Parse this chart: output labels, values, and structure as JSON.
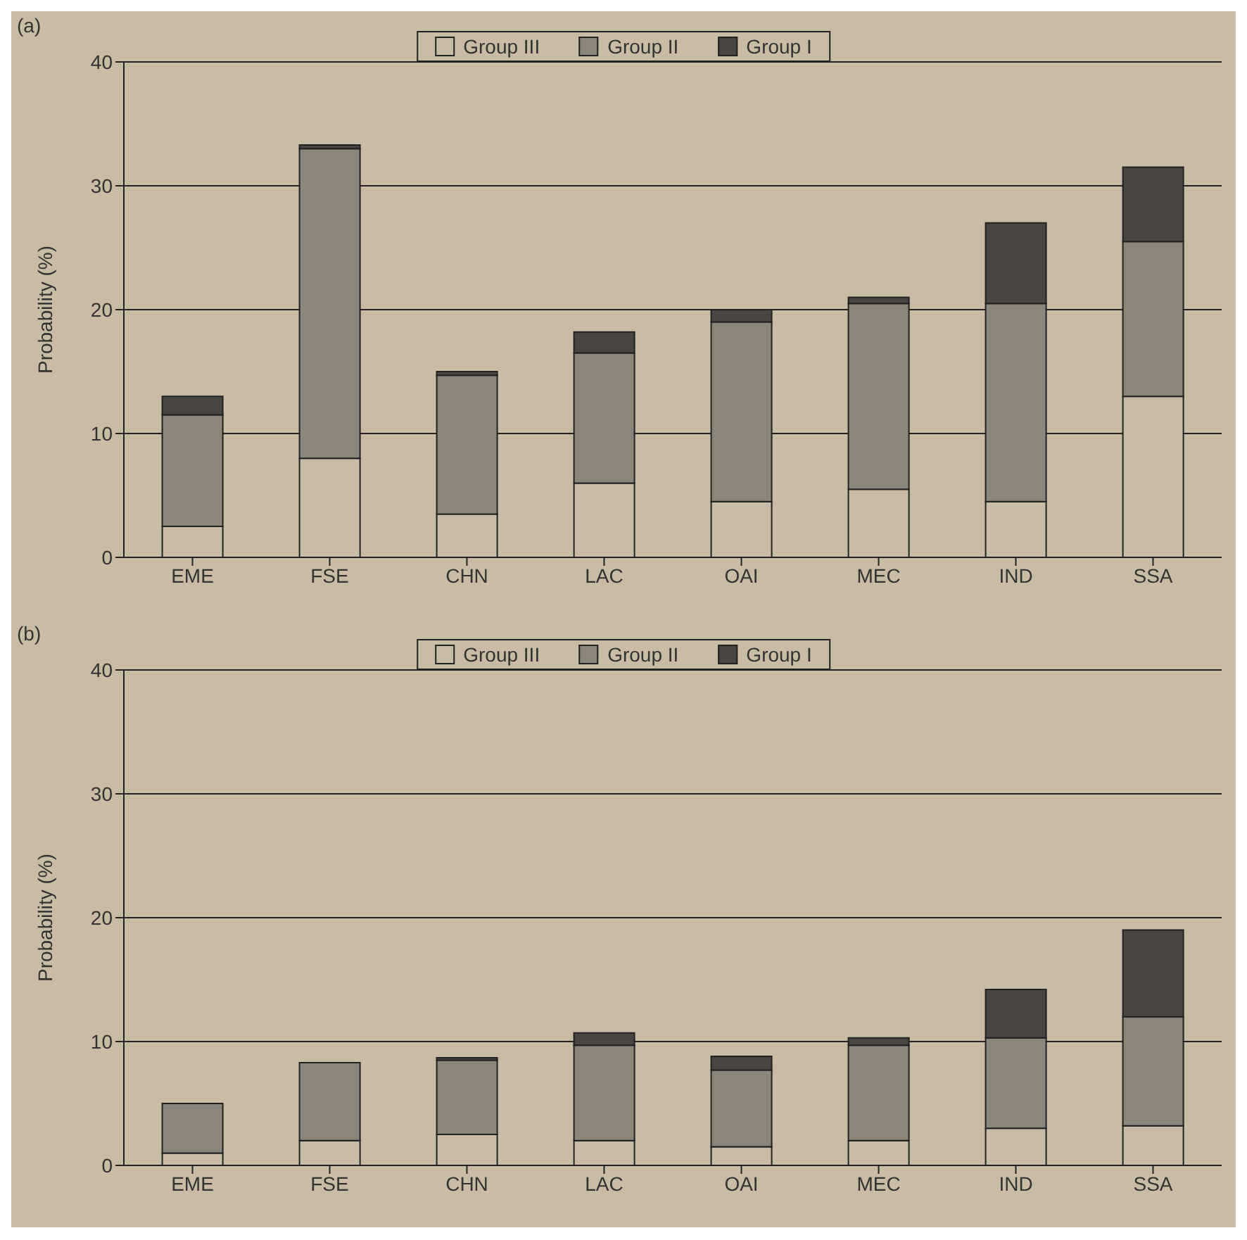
{
  "chart_data": [
    {
      "type": "bar",
      "title": "(a)",
      "ylabel": "Probability (%)",
      "stacked": true,
      "categories": [
        "EME",
        "FSE",
        "CHN",
        "LAC",
        "OAI",
        "MEC",
        "IND",
        "SSA"
      ],
      "series": [
        {
          "name": "Group III",
          "color": "#c8bca8",
          "values": [
            2.5,
            8,
            3.5,
            6,
            4.5,
            5.5,
            4.5,
            13
          ]
        },
        {
          "name": "Group II",
          "color": "#8c857a",
          "values": [
            9,
            25,
            11.2,
            10.5,
            14.5,
            15,
            16,
            12.5
          ]
        },
        {
          "name": "Group I",
          "color": "#4a4540",
          "values": [
            1.5,
            0.3,
            0.3,
            1.7,
            1,
            0.5,
            6.5,
            6
          ]
        }
      ],
      "ylim": [
        0,
        40
      ],
      "yticks": [
        0,
        10,
        20,
        30,
        40
      ],
      "grid": "y",
      "legend": "top"
    },
    {
      "type": "bar",
      "title": "(b)",
      "ylabel": "Probability (%)",
      "stacked": true,
      "categories": [
        "EME",
        "FSE",
        "CHN",
        "LAC",
        "OAI",
        "MEC",
        "IND",
        "SSA"
      ],
      "series": [
        {
          "name": "Group III",
          "color": "#c8bca8",
          "values": [
            1,
            2,
            2.5,
            2,
            1.5,
            2,
            3,
            3.2
          ]
        },
        {
          "name": "Group II",
          "color": "#8c857a",
          "values": [
            4,
            6.3,
            6,
            7.7,
            6.2,
            7.7,
            7.3,
            8.8
          ]
        },
        {
          "name": "Group I",
          "color": "#4a4540",
          "values": [
            0,
            0,
            0.2,
            1,
            1.1,
            0.6,
            3.9,
            7
          ]
        }
      ],
      "ylim": [
        0,
        40
      ],
      "yticks": [
        0,
        10,
        20,
        30,
        40
      ],
      "grid": "y",
      "legend": "top"
    }
  ]
}
